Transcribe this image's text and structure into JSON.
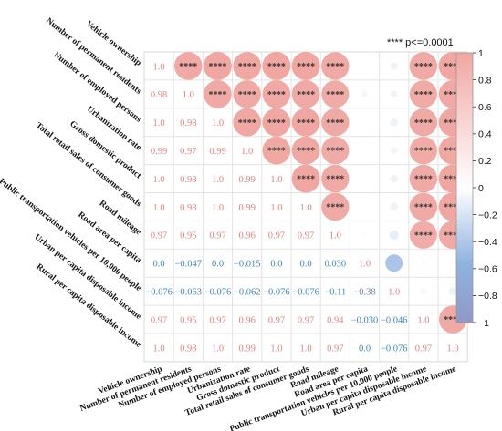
{
  "chart_data": {
    "type": "heatmap",
    "title": "",
    "variables": [
      "Vehicle ownership",
      "Number of permanent residents",
      "Number of employed persons",
      "Urbanization rate",
      "Gross domestic product",
      "Total retail sales of consumer goods",
      "Road mileage",
      "Road area per capita",
      "Public transportation vehicles per 10,000 people",
      "Urban per capita disposable income",
      "Rural per capita disposable income"
    ],
    "lower_labels": [
      [
        "1.0"
      ],
      [
        "0.98",
        "1.0"
      ],
      [
        "1.0",
        "0.98",
        "1.0"
      ],
      [
        "0.99",
        "0.97",
        "0.99",
        "1.0"
      ],
      [
        "1.0",
        "0.98",
        "1.0",
        "0.99",
        "1.0"
      ],
      [
        "1.0",
        "0.98",
        "1.0",
        "0.99",
        "1.0",
        "1.0"
      ],
      [
        "0.97",
        "0.95",
        "0.97",
        "0.96",
        "0.97",
        "0.97",
        "1.0"
      ],
      [
        "0.0",
        "−0.047",
        "0.0",
        "−0.015",
        "0.0",
        "0.0",
        "0.030",
        "1.0"
      ],
      [
        "−0.076",
        "−0.063",
        "−0.076",
        "−0.062",
        "−0.076",
        "−0.076",
        "−0.11",
        "−0.38",
        "1.0"
      ],
      [
        "0.97",
        "0.95",
        "0.97",
        "0.96",
        "0.97",
        "0.97",
        "0.94",
        "−0.030",
        "−0.046",
        "1.0"
      ],
      [
        "1.0",
        "0.98",
        "1.0",
        "0.99",
        "1.0",
        "1.0",
        "0.97",
        "0.0",
        "−0.076",
        "0.97",
        "1.0"
      ]
    ],
    "matrix": [
      [
        1.0,
        0.98,
        1.0,
        0.99,
        1.0,
        1.0,
        0.97,
        0.0,
        -0.076,
        0.97,
        1.0
      ],
      [
        0.98,
        1.0,
        0.98,
        0.97,
        0.98,
        0.98,
        0.95,
        -0.047,
        -0.063,
        0.95,
        0.98
      ],
      [
        1.0,
        0.98,
        1.0,
        0.99,
        1.0,
        1.0,
        0.97,
        0.0,
        -0.076,
        0.97,
        1.0
      ],
      [
        0.99,
        0.97,
        0.99,
        1.0,
        0.99,
        0.99,
        0.96,
        -0.015,
        -0.062,
        0.96,
        0.99
      ],
      [
        1.0,
        0.98,
        1.0,
        0.99,
        1.0,
        1.0,
        0.97,
        0.0,
        -0.076,
        0.97,
        1.0
      ],
      [
        1.0,
        0.98,
        1.0,
        0.99,
        1.0,
        1.0,
        0.97,
        0.0,
        -0.076,
        0.97,
        1.0
      ],
      [
        0.97,
        0.95,
        0.97,
        0.96,
        0.97,
        0.97,
        1.0,
        0.03,
        -0.11,
        0.94,
        0.97
      ],
      [
        0.0,
        -0.047,
        0.0,
        -0.015,
        0.0,
        0.0,
        0.03,
        1.0,
        -0.38,
        -0.03,
        0.0
      ],
      [
        -0.076,
        -0.063,
        -0.076,
        -0.062,
        -0.076,
        -0.076,
        -0.11,
        -0.38,
        1.0,
        -0.046,
        -0.076
      ],
      [
        0.97,
        0.95,
        0.97,
        0.96,
        0.97,
        0.97,
        0.94,
        -0.03,
        -0.046,
        1.0,
        0.97
      ],
      [
        1.0,
        0.98,
        1.0,
        0.99,
        1.0,
        1.0,
        0.97,
        0.0,
        -0.076,
        0.97,
        1.0
      ]
    ],
    "significance_marker": "****",
    "significance_legend": "**** p<=0.0001",
    "significant_pairs": [
      [
        0,
        1
      ],
      [
        0,
        2
      ],
      [
        0,
        3
      ],
      [
        0,
        4
      ],
      [
        0,
        5
      ],
      [
        0,
        6
      ],
      [
        0,
        9
      ],
      [
        0,
        10
      ],
      [
        1,
        2
      ],
      [
        1,
        3
      ],
      [
        1,
        4
      ],
      [
        1,
        5
      ],
      [
        1,
        6
      ],
      [
        1,
        9
      ],
      [
        1,
        10
      ],
      [
        2,
        3
      ],
      [
        2,
        4
      ],
      [
        2,
        5
      ],
      [
        2,
        6
      ],
      [
        2,
        9
      ],
      [
        2,
        10
      ],
      [
        3,
        4
      ],
      [
        3,
        5
      ],
      [
        3,
        6
      ],
      [
        3,
        9
      ],
      [
        3,
        10
      ],
      [
        4,
        5
      ],
      [
        4,
        6
      ],
      [
        4,
        9
      ],
      [
        4,
        10
      ],
      [
        5,
        6
      ],
      [
        5,
        9
      ],
      [
        5,
        10
      ],
      [
        6,
        9
      ],
      [
        6,
        10
      ],
      [
        9,
        10
      ]
    ],
    "colorbar": {
      "ticks": [
        "1",
        "0.8",
        "0.6",
        "0.4",
        "0.2",
        "0",
        "−0.2",
        "−0.4",
        "−0.6",
        "−0.8",
        "−1"
      ],
      "range": [
        -1,
        1
      ],
      "positive_color": "#f0a7a2",
      "neutral_color": "#ffffff",
      "negative_color": "#7ea6d8",
      "neg_strong_color": "#9098c8"
    },
    "legend_position": "right",
    "grid": true
  }
}
